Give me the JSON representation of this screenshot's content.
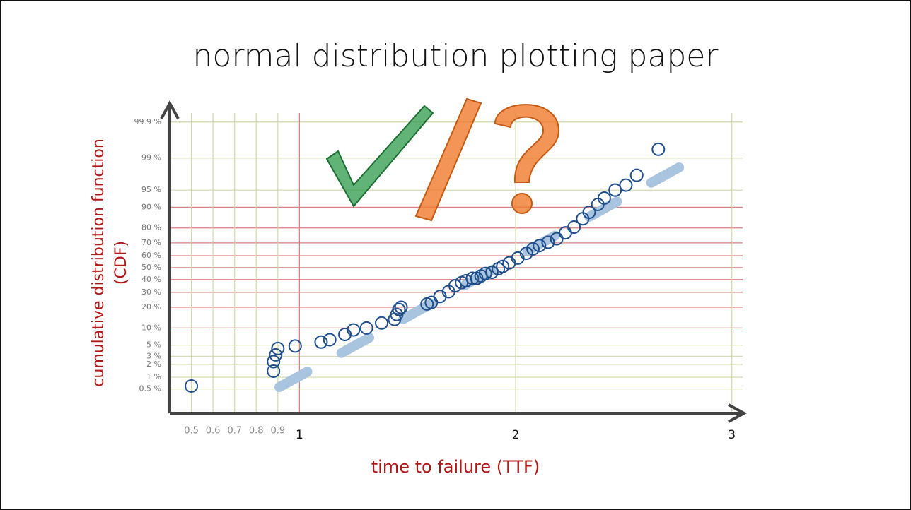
{
  "chart_data": {
    "type": "scatter",
    "title": "normal distribution plotting paper",
    "xlabel": "time to failure (TTF)",
    "ylabel": [
      "cumulative distribution function",
      "(CDF)"
    ],
    "yscale": "probit",
    "xlim": [
      0.4,
      3.05
    ],
    "ylim": [
      0.1,
      99.97
    ],
    "xticks": [
      0.5,
      0.6,
      0.7,
      0.8,
      0.9,
      1,
      2,
      3
    ],
    "yticks": [
      {
        "value": 99.9,
        "label": "99.9 %"
      },
      {
        "value": 99,
        "label": "99 %"
      },
      {
        "value": 95,
        "label": "95 %"
      },
      {
        "value": 90,
        "label": "90 %"
      },
      {
        "value": 80,
        "label": "80 %"
      },
      {
        "value": 70,
        "label": "70 %"
      },
      {
        "value": 60,
        "label": "60 %"
      },
      {
        "value": 50,
        "label": "50 %"
      },
      {
        "value": 40,
        "label": "40 %"
      },
      {
        "value": 30,
        "label": "30 %"
      },
      {
        "value": 20,
        "label": "20 %"
      },
      {
        "value": 10,
        "label": "10 %"
      },
      {
        "value": 5,
        "label": "5 %"
      },
      {
        "value": 3,
        "label": "3 %"
      },
      {
        "value": 2,
        "label": "2 %"
      },
      {
        "value": 1,
        "label": "1 %"
      },
      {
        "value": 0.5,
        "label": "0.5 %"
      }
    ],
    "grid": true,
    "color": "#1f4e8c",
    "x": [
      0.5,
      0.88,
      0.88,
      0.89,
      0.9,
      0.98,
      1.1,
      1.14,
      1.21,
      1.25,
      1.31,
      1.38,
      1.44,
      1.45,
      1.46,
      1.47,
      1.59,
      1.61,
      1.65,
      1.69,
      1.72,
      1.75,
      1.77,
      1.8,
      1.82,
      1.84,
      1.86,
      1.89,
      1.92,
      1.94,
      1.97,
      2.01,
      2.05,
      2.08,
      2.11,
      2.15,
      2.19,
      2.23,
      2.27,
      2.31,
      2.34,
      2.38,
      2.41,
      2.46,
      2.51,
      2.56,
      2.66
    ],
    "values": [
      0.6,
      1.4,
      2.3,
      3.2,
      4.3,
      4.8,
      5.7,
      6.3,
      7.8,
      9.3,
      10,
      12,
      13.6,
      16,
      18.7,
      20,
      22,
      23,
      27,
      30.5,
      35,
      37.5,
      39,
      41,
      41,
      43,
      45,
      46,
      49,
      51,
      54,
      58,
      62,
      65.5,
      68,
      70.5,
      73,
      77,
      80.5,
      85,
      88,
      91,
      93,
      95,
      96,
      97.5,
      99.4
    ]
  }
}
